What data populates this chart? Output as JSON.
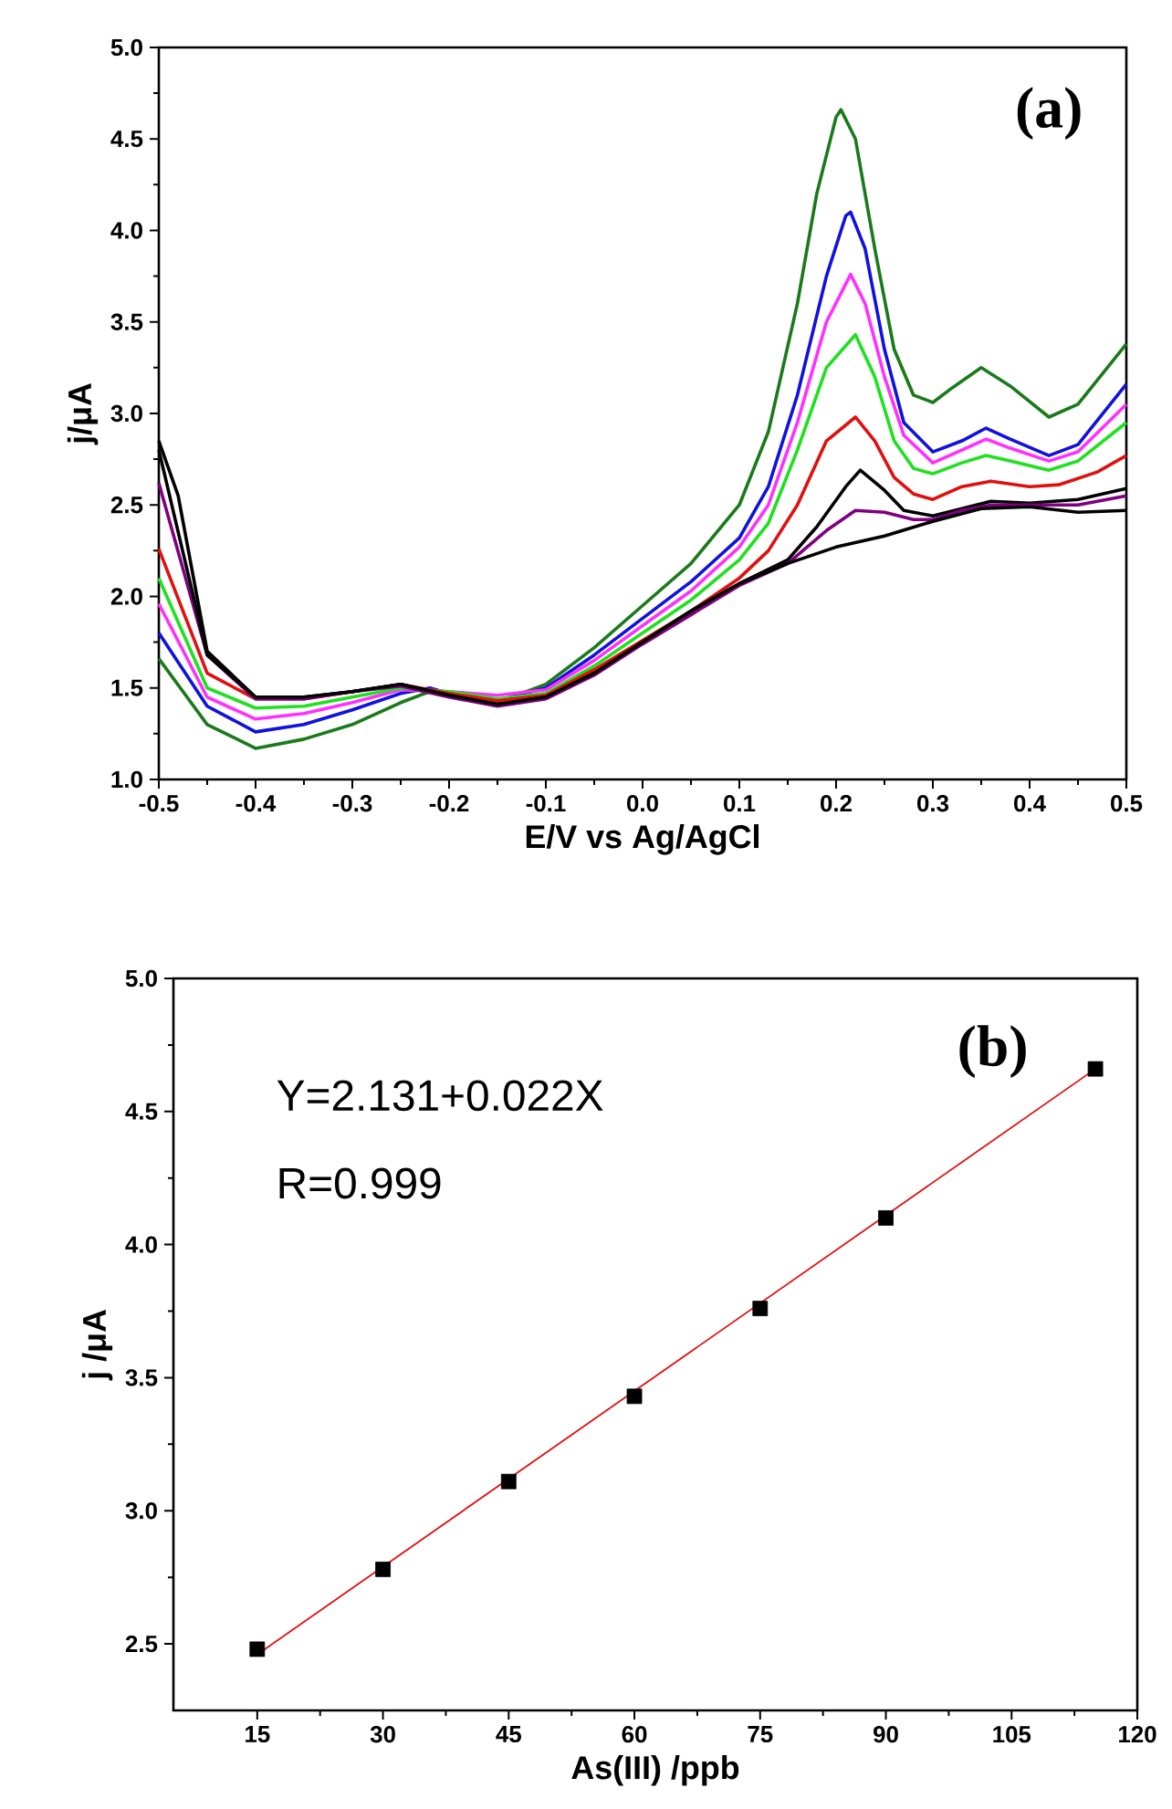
{
  "chart_data": [
    {
      "type": "line",
      "xlabel": "E/V vs Ag/AgCl",
      "ylabel": "j/μA",
      "annotations": [
        "(a)"
      ],
      "xlim": [
        -0.5,
        0.5
      ],
      "ylim": [
        1.0,
        5.0
      ],
      "xticks": [
        -0.5,
        -0.4,
        -0.3,
        -0.2,
        -0.1,
        {
          "value": 0,
          "label": "0.0"
        },
        0.1,
        0.2,
        0.3,
        0.4,
        0.5
      ],
      "yticks": [
        {
          "value": 1,
          "label": "1.0"
        },
        1.5,
        {
          "value": 2,
          "label": "2.0"
        },
        2.5,
        {
          "value": 3,
          "label": "3.0"
        },
        3.5,
        {
          "value": 4,
          "label": "4.0"
        },
        4.5,
        {
          "value": 5,
          "label": "5.0"
        }
      ],
      "series": [
        {
          "color": "#1a7a1a",
          "x": [
            -0.5,
            -0.45,
            -0.4,
            -0.35,
            -0.3,
            -0.25,
            -0.22,
            -0.2,
            -0.15,
            -0.1,
            -0.05,
            0.0,
            0.05,
            0.1,
            0.13,
            0.16,
            0.18,
            0.2,
            0.205,
            0.22,
            0.24,
            0.26,
            0.28,
            0.3,
            0.32,
            0.35,
            0.38,
            0.42,
            0.45,
            0.5
          ],
          "values": [
            1.66,
            1.3,
            1.17,
            1.22,
            1.3,
            1.42,
            1.48,
            1.46,
            1.42,
            1.52,
            1.72,
            1.95,
            2.18,
            2.5,
            2.9,
            3.6,
            4.2,
            4.62,
            4.66,
            4.5,
            3.9,
            3.35,
            3.1,
            3.06,
            3.14,
            3.25,
            3.15,
            2.98,
            3.05,
            3.38
          ]
        },
        {
          "color": "#1010e0",
          "x": [
            -0.5,
            -0.45,
            -0.4,
            -0.35,
            -0.3,
            -0.25,
            -0.22,
            -0.2,
            -0.15,
            -0.1,
            -0.05,
            0.0,
            0.05,
            0.1,
            0.13,
            0.16,
            0.19,
            0.21,
            0.215,
            0.23,
            0.25,
            0.27,
            0.3,
            0.33,
            0.355,
            0.38,
            0.42,
            0.45,
            0.5
          ],
          "values": [
            1.8,
            1.4,
            1.26,
            1.3,
            1.38,
            1.47,
            1.5,
            1.47,
            1.43,
            1.5,
            1.68,
            1.88,
            2.08,
            2.32,
            2.6,
            3.1,
            3.75,
            4.08,
            4.1,
            3.9,
            3.35,
            2.95,
            2.79,
            2.85,
            2.92,
            2.86,
            2.77,
            2.83,
            3.16
          ]
        },
        {
          "color": "#ff30ff",
          "x": [
            -0.5,
            -0.45,
            -0.4,
            -0.35,
            -0.3,
            -0.25,
            -0.2,
            -0.15,
            -0.1,
            -0.05,
            0.0,
            0.05,
            0.1,
            0.13,
            0.16,
            0.19,
            0.215,
            0.23,
            0.25,
            0.27,
            0.3,
            0.33,
            0.355,
            0.38,
            0.42,
            0.45,
            0.5
          ],
          "values": [
            1.96,
            1.45,
            1.33,
            1.36,
            1.42,
            1.49,
            1.48,
            1.46,
            1.49,
            1.65,
            1.84,
            2.03,
            2.27,
            2.5,
            2.95,
            3.5,
            3.76,
            3.6,
            3.2,
            2.88,
            2.73,
            2.8,
            2.86,
            2.81,
            2.74,
            2.79,
            3.05
          ]
        },
        {
          "color": "#20e020",
          "x": [
            -0.5,
            -0.45,
            -0.4,
            -0.35,
            -0.3,
            -0.25,
            -0.2,
            -0.15,
            -0.1,
            -0.05,
            0.0,
            0.05,
            0.1,
            0.13,
            0.16,
            0.19,
            0.22,
            0.24,
            0.26,
            0.28,
            0.3,
            0.33,
            0.355,
            0.38,
            0.42,
            0.45,
            0.5
          ],
          "values": [
            2.1,
            1.5,
            1.39,
            1.4,
            1.45,
            1.5,
            1.48,
            1.44,
            1.47,
            1.62,
            1.8,
            1.98,
            2.2,
            2.4,
            2.8,
            3.25,
            3.43,
            3.2,
            2.85,
            2.7,
            2.67,
            2.73,
            2.77,
            2.74,
            2.69,
            2.74,
            2.95
          ]
        },
        {
          "color": "#e01010",
          "x": [
            -0.5,
            -0.45,
            -0.4,
            -0.35,
            -0.3,
            -0.25,
            -0.2,
            -0.15,
            -0.1,
            -0.05,
            0.0,
            0.05,
            0.1,
            0.13,
            0.16,
            0.19,
            0.22,
            0.24,
            0.26,
            0.28,
            0.3,
            0.33,
            0.36,
            0.4,
            0.43,
            0.47,
            0.5
          ],
          "values": [
            2.26,
            1.58,
            1.44,
            1.44,
            1.48,
            1.52,
            1.47,
            1.43,
            1.46,
            1.6,
            1.76,
            1.92,
            2.1,
            2.25,
            2.5,
            2.85,
            2.98,
            2.85,
            2.65,
            2.56,
            2.53,
            2.6,
            2.63,
            2.6,
            2.61,
            2.68,
            2.77
          ]
        },
        {
          "color": "#000000",
          "x": [
            -0.5,
            -0.48,
            -0.45,
            -0.4,
            -0.35,
            -0.3,
            -0.25,
            -0.2,
            -0.15,
            -0.1,
            -0.05,
            0.0,
            0.05,
            0.1,
            0.15,
            0.18,
            0.21,
            0.225,
            0.25,
            0.27,
            0.3,
            0.33,
            0.36,
            0.4,
            0.45,
            0.5
          ],
          "values": [
            2.85,
            2.55,
            1.7,
            1.45,
            1.45,
            1.48,
            1.52,
            1.46,
            1.41,
            1.45,
            1.58,
            1.75,
            1.92,
            2.07,
            2.2,
            2.38,
            2.6,
            2.69,
            2.58,
            2.47,
            2.44,
            2.48,
            2.52,
            2.51,
            2.53,
            2.59
          ]
        },
        {
          "color": "#800080",
          "x": [
            -0.5,
            -0.45,
            -0.4,
            -0.35,
            -0.3,
            -0.25,
            -0.2,
            -0.15,
            -0.1,
            -0.05,
            0.0,
            0.05,
            0.1,
            0.15,
            0.19,
            0.22,
            0.25,
            0.28,
            0.3,
            0.33,
            0.36,
            0.4,
            0.45,
            0.5
          ],
          "values": [
            2.62,
            1.68,
            1.44,
            1.44,
            1.48,
            1.51,
            1.45,
            1.4,
            1.44,
            1.57,
            1.74,
            1.9,
            2.06,
            2.18,
            2.36,
            2.47,
            2.46,
            2.42,
            2.42,
            2.47,
            2.5,
            2.5,
            2.5,
            2.55
          ]
        },
        {
          "color": "#000000",
          "x": [
            -0.5,
            -0.45,
            -0.4,
            -0.35,
            -0.3,
            -0.25,
            -0.2,
            -0.15,
            -0.1,
            -0.05,
            0.0,
            0.05,
            0.1,
            0.15,
            0.2,
            0.25,
            0.3,
            0.35,
            0.4,
            0.45,
            0.5
          ],
          "values": [
            2.8,
            1.68,
            1.45,
            1.45,
            1.48,
            1.52,
            1.46,
            1.41,
            1.45,
            1.58,
            1.75,
            1.92,
            2.07,
            2.18,
            2.27,
            2.33,
            2.41,
            2.48,
            2.49,
            2.46,
            2.47
          ]
        }
      ]
    },
    {
      "type": "scatter",
      "xlabel": "As(III) /ppb",
      "ylabel": "j /μA",
      "annotations": [
        "Y=2.131+0.022X",
        "R=0.999",
        "(b)"
      ],
      "marker": "square",
      "xlim": [
        5,
        120
      ],
      "ylim": [
        2.25,
        5.0
      ],
      "xticks": [
        15,
        30,
        45,
        60,
        75,
        90,
        105,
        120
      ],
      "yticks": [
        2.5,
        {
          "value": 3,
          "label": "3.0"
        },
        3.5,
        {
          "value": 4,
          "label": "4.0"
        },
        4.5,
        {
          "value": 5,
          "label": "5.0"
        }
      ],
      "series": [
        {
          "type": "scatter",
          "color": "#000000",
          "x": [
            15,
            30,
            45,
            60,
            75,
            90,
            115
          ],
          "values": [
            2.48,
            2.78,
            3.11,
            3.43,
            3.76,
            4.1,
            4.66
          ]
        },
        {
          "type": "line",
          "marker": "none",
          "color": "#e01010",
          "x": [
            15,
            115
          ],
          "values": [
            2.46,
            4.66
          ]
        }
      ]
    }
  ]
}
